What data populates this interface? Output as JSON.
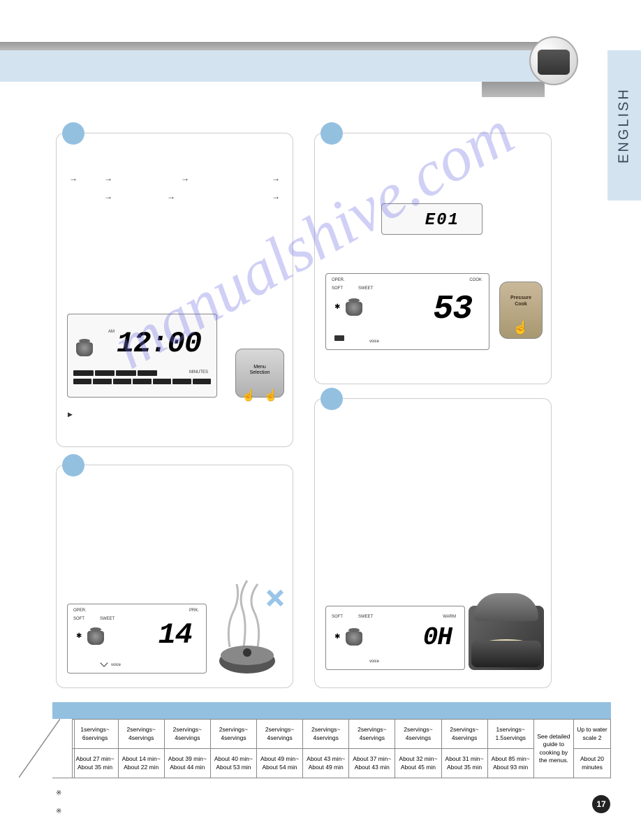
{
  "lang_tab": "ENGLISH",
  "page_number": "17",
  "watermark": "manualshive.com",
  "panels": {
    "panel1_time": "12:00",
    "panel1_am": "AM",
    "panel1_minutes": "MINUTES",
    "panel2_oper": "OPER.",
    "panel2_soft": "SOFT",
    "panel2_sweet": "SWEET",
    "panel2_prk": "PRK.",
    "panel2_value": "14",
    "panel2_voice": "voice",
    "panel3a_value": "E01",
    "panel3b_oper": "OPER.",
    "panel3b_soft": "SOFT",
    "panel3b_sweet": "SWEET",
    "panel3b_cook": "COOK",
    "panel3b_value": "53",
    "panel3b_voice": "voice",
    "panel3b_btn1": "Pressure",
    "panel3b_btn2": "Cook",
    "panel4_soft": "SOFT",
    "panel4_sweet": "SWEET",
    "panel4_warm": "WARM",
    "panel4_value": "0H",
    "panel4_voice": "voice",
    "button_menu": "Menu",
    "button_selection": "Selection"
  },
  "table": {
    "cols": [
      {
        "servings": "1servings~\n6servings",
        "time": "About 27 min~\nAbout 35 min"
      },
      {
        "servings": "2servings~\n4servings",
        "time": "About 14 min~\nAbout 22 min"
      },
      {
        "servings": "2servings~\n4servings",
        "time": "About 39 min~\nAbout 44 min"
      },
      {
        "servings": "2servings~\n4servings",
        "time": "About 40 min~\nAbout 53 min"
      },
      {
        "servings": "2servings~\n4servings",
        "time": "About 49 min~\nAbout 54 min"
      },
      {
        "servings": "2servings~\n4servings",
        "time": "About 43 min~\nAbout 49 min"
      },
      {
        "servings": "2servings~\n4servings",
        "time": "About 37 min~\nAbout 43 min"
      },
      {
        "servings": "2servings~\n4servings",
        "time": "About 32 min~\nAbout 45 min"
      },
      {
        "servings": "2servings~\n4servings",
        "time": "About 31 min~\nAbout 35 min"
      },
      {
        "servings": "1servings~\n1.5servings",
        "time": "About 85 min~\nAbout 93 min"
      }
    ],
    "col_special1": "See detailed\nguide to\ncooking by\nthe menus.",
    "col_special2_top": "Up to water\nscale 2",
    "col_special2_bot": "About 20\nminutes"
  },
  "note": "※"
}
